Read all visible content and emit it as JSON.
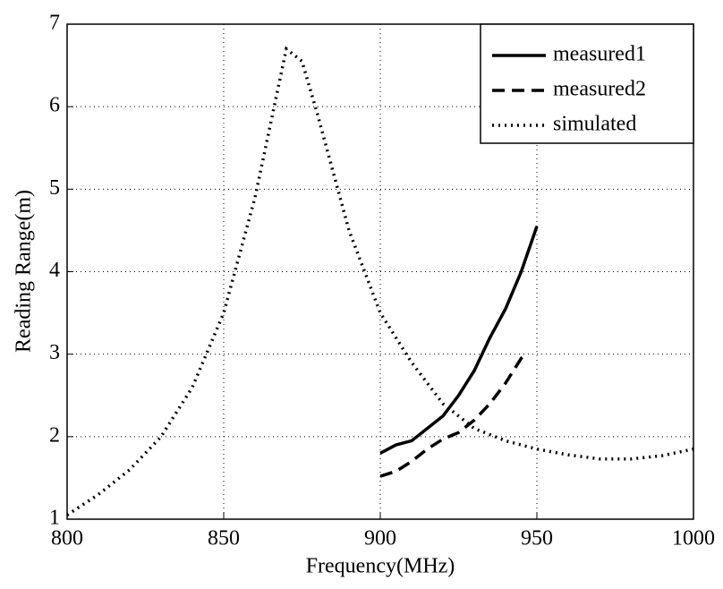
{
  "chart_data": {
    "type": "line",
    "xlabel": "Frequency(MHz)",
    "ylabel": "Reading Range(m)",
    "xlim": [
      800,
      1000
    ],
    "ylim": [
      1,
      7
    ],
    "xticks": [
      800,
      850,
      900,
      950,
      1000
    ],
    "yticks": [
      1,
      2,
      3,
      4,
      5,
      6,
      7
    ],
    "grid": true,
    "legend": "upper right",
    "series": [
      {
        "name": "measured1",
        "color": "#000000",
        "dash": "solid",
        "x": [
          900,
          905,
          910,
          915,
          920,
          925,
          930,
          935,
          940,
          945,
          950
        ],
        "values": [
          1.8,
          1.9,
          1.95,
          2.1,
          2.25,
          2.5,
          2.8,
          3.2,
          3.55,
          4.0,
          4.55
        ]
      },
      {
        "name": "measured2",
        "color": "#000000",
        "dash": "dashed",
        "x": [
          900,
          905,
          910,
          915,
          920,
          925,
          930,
          935,
          940,
          945,
          947
        ],
        "values": [
          1.52,
          1.58,
          1.7,
          1.85,
          1.97,
          2.05,
          2.2,
          2.4,
          2.65,
          2.95,
          3.02
        ]
      },
      {
        "name": "simulated",
        "color": "#000000",
        "dash": "dotted",
        "x": [
          800,
          810,
          820,
          830,
          840,
          850,
          860,
          865,
          870,
          875,
          880,
          890,
          900,
          910,
          920,
          930,
          940,
          950,
          960,
          970,
          980,
          990,
          1000
        ],
        "values": [
          1.05,
          1.3,
          1.6,
          2.0,
          2.6,
          3.5,
          4.9,
          5.8,
          6.7,
          6.55,
          5.9,
          4.5,
          3.5,
          2.9,
          2.4,
          2.1,
          1.95,
          1.85,
          1.78,
          1.73,
          1.73,
          1.77,
          1.85
        ]
      }
    ]
  }
}
